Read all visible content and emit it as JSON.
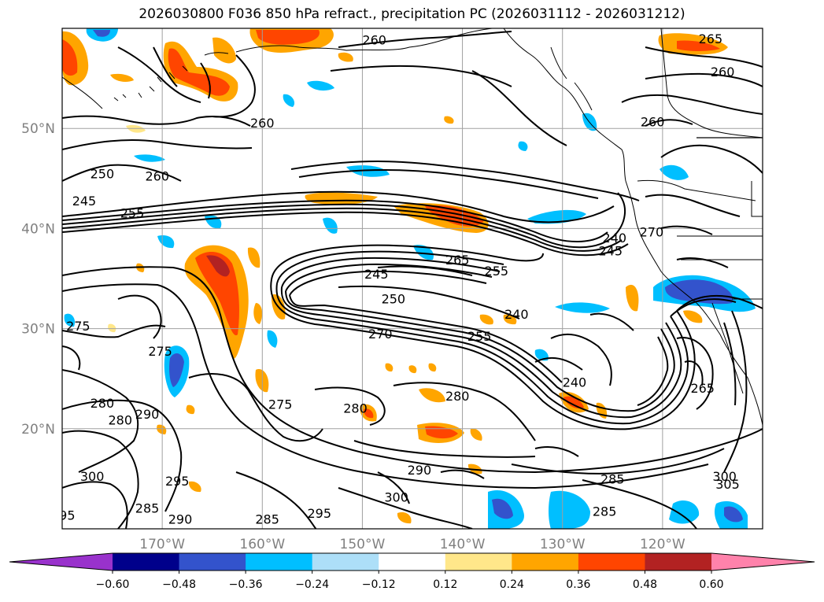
{
  "title": "2026030800 F036 850 hPa refract., precipitation PC (2026031112 - 2026031212)",
  "map": {
    "lon_range": [
      -180,
      -110
    ],
    "lat_range": [
      10,
      60
    ],
    "lat_labels": [
      {
        "lat": 50,
        "text": "50°N"
      },
      {
        "lat": 40,
        "text": "40°N"
      },
      {
        "lat": 30,
        "text": "30°N"
      },
      {
        "lat": 20,
        "text": "20°N"
      }
    ],
    "lon_labels": [
      {
        "lon": -170,
        "text": "170°W"
      },
      {
        "lon": -160,
        "text": "160°W"
      },
      {
        "lon": -150,
        "text": "150°W"
      },
      {
        "lon": -140,
        "text": "140°W"
      },
      {
        "lon": -130,
        "text": "130°W"
      },
      {
        "lon": -120,
        "text": "120°W"
      }
    ],
    "contour_labels": [
      {
        "text": "265",
        "lon": -115.2,
        "lat": 58.9
      },
      {
        "text": "260",
        "lon": -148.8,
        "lat": 58.8
      },
      {
        "text": "260",
        "lon": -114.0,
        "lat": 55.6
      },
      {
        "text": "260",
        "lon": -160.0,
        "lat": 50.5
      },
      {
        "text": "260",
        "lon": -121.0,
        "lat": 50.6
      },
      {
        "text": "250",
        "lon": -176.0,
        "lat": 45.4
      },
      {
        "text": "245",
        "lon": -177.8,
        "lat": 42.7
      },
      {
        "text": "260",
        "lon": -170.5,
        "lat": 45.2
      },
      {
        "text": "255",
        "lon": -173.0,
        "lat": 41.5
      },
      {
        "text": "240",
        "lon": -124.8,
        "lat": 39.0
      },
      {
        "text": "245",
        "lon": -125.2,
        "lat": 37.7
      },
      {
        "text": "270",
        "lon": -121.1,
        "lat": 39.6
      },
      {
        "text": "265",
        "lon": -140.5,
        "lat": 36.8
      },
      {
        "text": "255",
        "lon": -136.6,
        "lat": 35.7
      },
      {
        "text": "245",
        "lon": -148.6,
        "lat": 35.4
      },
      {
        "text": "250",
        "lon": -146.9,
        "lat": 32.9
      },
      {
        "text": "240",
        "lon": -134.6,
        "lat": 31.4
      },
      {
        "text": "270",
        "lon": -148.2,
        "lat": 29.4
      },
      {
        "text": "255",
        "lon": -138.3,
        "lat": 29.2
      },
      {
        "text": "275",
        "lon": -178.4,
        "lat": 30.2
      },
      {
        "text": "275",
        "lon": -170.2,
        "lat": 27.7
      },
      {
        "text": "240",
        "lon": -128.8,
        "lat": 24.6
      },
      {
        "text": "280",
        "lon": -140.5,
        "lat": 23.2
      },
      {
        "text": "275",
        "lon": -158.2,
        "lat": 22.4
      },
      {
        "text": "280",
        "lon": -150.7,
        "lat": 22.0
      },
      {
        "text": "280",
        "lon": -176.0,
        "lat": 22.5
      },
      {
        "text": "280",
        "lon": -174.2,
        "lat": 20.8
      },
      {
        "text": "290",
        "lon": -171.5,
        "lat": 21.4
      },
      {
        "text": "265",
        "lon": -116.0,
        "lat": 24.0
      },
      {
        "text": "300",
        "lon": -177.0,
        "lat": 15.2
      },
      {
        "text": "295",
        "lon": -168.5,
        "lat": 14.7
      },
      {
        "text": "290",
        "lon": -144.3,
        "lat": 15.8
      },
      {
        "text": "285",
        "lon": -125.0,
        "lat": 14.9
      },
      {
        "text": "300",
        "lon": -146.6,
        "lat": 13.1
      },
      {
        "text": "295",
        "lon": -154.3,
        "lat": 11.5
      },
      {
        "text": "285",
        "lon": -171.5,
        "lat": 12.0
      },
      {
        "text": "290",
        "lon": -168.2,
        "lat": 10.9
      },
      {
        "text": "285",
        "lon": -159.5,
        "lat": 10.9
      },
      {
        "text": "285",
        "lon": -125.8,
        "lat": 11.7
      },
      {
        "text": "305",
        "lon": -113.5,
        "lat": 14.4
      },
      {
        "text": "300",
        "lon": -113.8,
        "lat": 15.2
      },
      {
        "text": "95",
        "lon": -179.5,
        "lat": 11.3
      }
    ]
  },
  "colorbar": {
    "ticks": [
      "−0.60",
      "−0.48",
      "−0.36",
      "−0.24",
      "−0.12",
      "0.12",
      "0.24",
      "0.36",
      "0.48",
      "0.60"
    ],
    "colors": {
      "under": "#9932CC",
      "bins": [
        "#00008B",
        "#3353CC",
        "#00BFFF",
        "#ADDFF8",
        "#FFFFFF",
        "#FFE78A",
        "#FFA500",
        "#FF4500",
        "#B22222"
      ],
      "over": "#FF82AB"
    }
  },
  "colors": {
    "grid": "#a0a0a0",
    "contour": "#000000",
    "axis_label": "#808080"
  }
}
